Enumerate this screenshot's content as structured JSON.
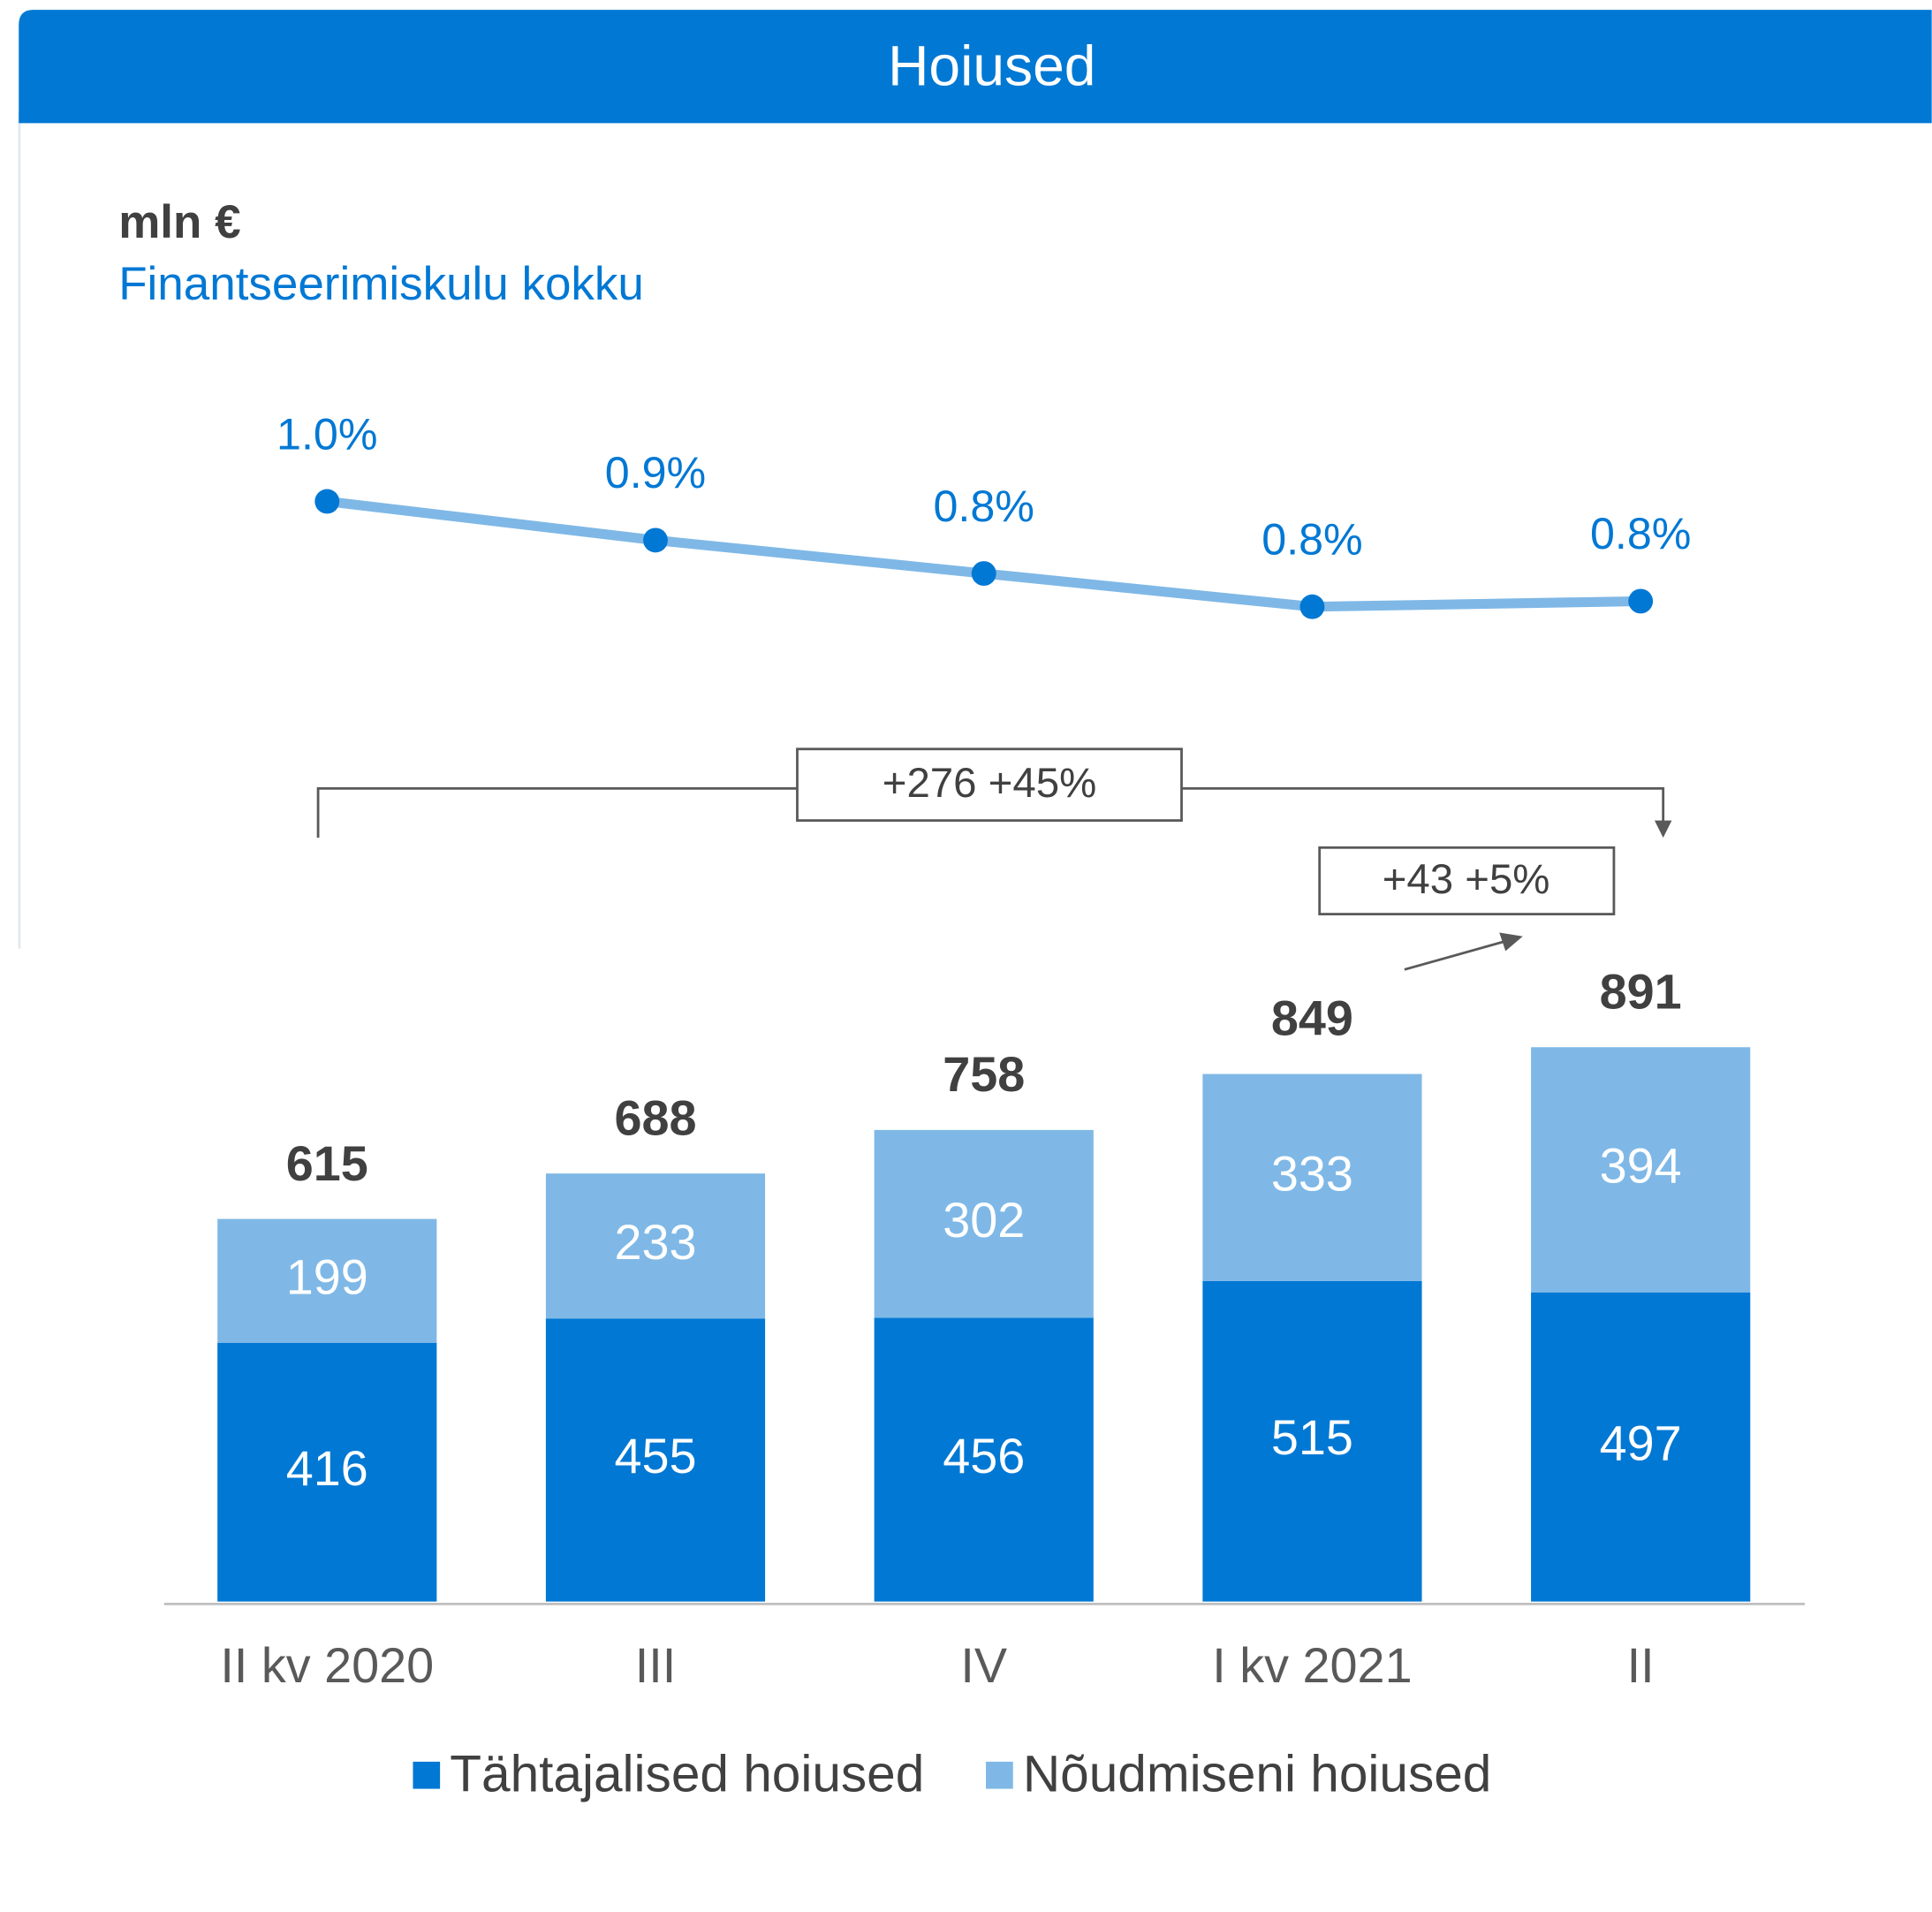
{
  "title": "Hoiused",
  "chart_data": {
    "type": "stacked_bar_line",
    "unit_label": "mln €",
    "categories": [
      "II kv 2020",
      "III",
      "IV",
      "I kv 2021",
      "II"
    ],
    "series": [
      {
        "name": "Tähtajalised hoiused",
        "color": "#0078d4",
        "values": [
          416,
          455,
          456,
          515,
          497
        ]
      },
      {
        "name": "Nõudmiseni hoiused",
        "color": "#7fb8e6",
        "values": [
          199,
          233,
          302,
          333,
          394
        ]
      },
      {
        "name": "Finantseerimiskulu kokku",
        "type": "line",
        "axis": "y2",
        "color": "#7fb8e6",
        "marker_color": "#0078d4",
        "values": [
          0.96,
          0.89,
          0.83,
          0.77,
          0.78
        ],
        "value_labels": [
          "1.0%",
          "0.9%",
          "0.8%",
          "0.8%",
          "0.8%"
        ]
      }
    ],
    "totals": [
      615,
      688,
      758,
      849,
      891
    ],
    "ylim": [
      0,
      1000
    ],
    "y2lim": [
      0.5,
      1.2
    ],
    "annotations": [
      "+276 +45%",
      "+43 +5%"
    ]
  }
}
